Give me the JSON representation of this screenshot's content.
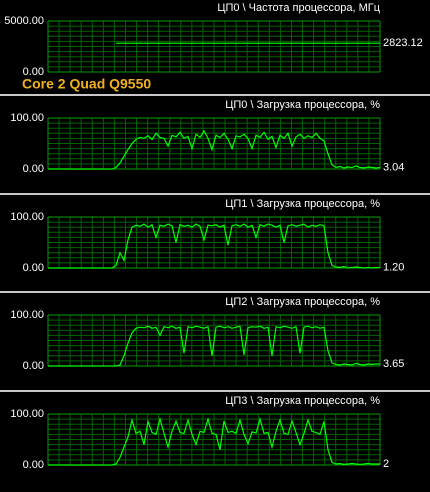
{
  "chart_data": [
    {
      "type": "line",
      "title": "ЦП0 \\ Частота процессора, МГц",
      "annotation": "Core 2 Quad Q9550",
      "color": "#00ff00",
      "grid": true,
      "ylim": [
        0,
        5000
      ],
      "yticks": [
        {
          "value": 0,
          "label": "0.00"
        },
        {
          "value": 5000,
          "label": "5000.00"
        }
      ],
      "current": {
        "value": 2823.12,
        "label": "2823.12"
      },
      "values": [
        null,
        null,
        null,
        null,
        null,
        null,
        null,
        null,
        null,
        null,
        null,
        null,
        null,
        null,
        null,
        null,
        null,
        2823.12,
        2823.12,
        2823.12,
        2823.12,
        2823.12,
        2823.12,
        2823.12,
        2823.12,
        2823.12,
        2823.12,
        2823.12,
        2823.12,
        2823.12,
        2823.12,
        2823.12,
        2823.12,
        2823.12,
        2823.12,
        2823.12,
        2823.12,
        2823.12,
        2823.12,
        2823.12,
        2823.12,
        2823.12,
        2823.12,
        2823.12,
        2823.12,
        2823.12,
        2823.12,
        2823.12,
        2823.12,
        2823.12,
        2823.12,
        2823.12,
        2823.12,
        2823.12,
        2823.12,
        2823.12,
        2823.12,
        2823.12,
        2823.12,
        2823.12,
        2823.12,
        2823.12,
        2823.12,
        2823.12,
        2823.12,
        2823.12,
        2823.12,
        2823.12,
        2823.12,
        2823.12,
        2823.12,
        2823.12,
        2823.12,
        2823.12,
        2823.12,
        2823.12,
        2823.12,
        2823.12,
        2823.12,
        2823.12,
        2823.12,
        2823.12,
        2823.12,
        2823.12
      ]
    },
    {
      "type": "line",
      "title": "ЦП0 \\ Загрузка процессора, %",
      "color": "#00ff00",
      "grid": true,
      "ylim": [
        0,
        100
      ],
      "yticks": [
        {
          "value": 0,
          "label": "0.00"
        },
        {
          "value": 100,
          "label": "100.00"
        }
      ],
      "current": {
        "value": 3.04,
        "label": "3.04"
      },
      "values": [
        0,
        0,
        0,
        0,
        0,
        0,
        0,
        0,
        0,
        0,
        0,
        0,
        0,
        0,
        0,
        0,
        0,
        3,
        12,
        25,
        38,
        50,
        58,
        62,
        60,
        65,
        58,
        70,
        62,
        60,
        45,
        66,
        63,
        72,
        60,
        64,
        40,
        68,
        62,
        75,
        60,
        38,
        66,
        62,
        70,
        58,
        40,
        65,
        63,
        68,
        60,
        40,
        66,
        62,
        72,
        58,
        64,
        42,
        66,
        60,
        70,
        45,
        63,
        68,
        60,
        65,
        62,
        70,
        60,
        55,
        30,
        8,
        3,
        5,
        2,
        4,
        3,
        6,
        3,
        2,
        4,
        3,
        2,
        3
      ]
    },
    {
      "type": "line",
      "title": "ЦП1 \\ Загрузка процессора, %",
      "color": "#00ff00",
      "grid": true,
      "ylim": [
        0,
        100
      ],
      "yticks": [
        {
          "value": 0,
          "label": "0.00"
        },
        {
          "value": 100,
          "label": "100.00"
        }
      ],
      "current": {
        "value": 1.2,
        "label": "1.20"
      },
      "values": [
        0,
        0,
        0,
        0,
        0,
        0,
        0,
        0,
        0,
        0,
        0,
        0,
        0,
        0,
        0,
        0,
        0,
        5,
        30,
        15,
        55,
        80,
        84,
        82,
        86,
        80,
        85,
        60,
        84,
        82,
        86,
        83,
        50,
        85,
        82,
        84,
        80,
        86,
        82,
        55,
        84,
        83,
        85,
        80,
        84,
        45,
        83,
        85,
        82,
        86,
        80,
        84,
        60,
        85,
        82,
        86,
        84,
        80,
        84,
        50,
        83,
        85,
        82,
        84,
        86,
        80,
        84,
        82,
        85,
        83,
        30,
        5,
        2,
        1,
        3,
        0,
        1,
        2,
        1,
        0,
        1,
        0,
        1,
        1
      ]
    },
    {
      "type": "line",
      "title": "ЦП2 \\ Загрузка процессора, %",
      "color": "#00ff00",
      "grid": true,
      "ylim": [
        0,
        100
      ],
      "yticks": [
        {
          "value": 0,
          "label": "0.00"
        },
        {
          "value": 100,
          "label": "100.00"
        }
      ],
      "current": {
        "value": 3.65,
        "label": "3.65"
      },
      "values": [
        0,
        0,
        0,
        0,
        0,
        0,
        0,
        0,
        0,
        0,
        0,
        0,
        0,
        0,
        0,
        0,
        0,
        0,
        2,
        20,
        45,
        65,
        74,
        76,
        75,
        78,
        74,
        76,
        60,
        77,
        75,
        78,
        74,
        76,
        25,
        77,
        75,
        78,
        76,
        74,
        77,
        20,
        76,
        78,
        75,
        77,
        74,
        76,
        78,
        22,
        75,
        77,
        76,
        78,
        74,
        76,
        20,
        77,
        75,
        78,
        76,
        74,
        77,
        25,
        76,
        78,
        75,
        77,
        74,
        76,
        30,
        6,
        3,
        2,
        4,
        3,
        2,
        5,
        3,
        2,
        4,
        3,
        4,
        4
      ]
    },
    {
      "type": "line",
      "title": "ЦП3 \\ Загрузка процессора, %",
      "color": "#00ff00",
      "grid": true,
      "ylim": [
        0,
        100
      ],
      "yticks": [
        {
          "value": 0,
          "label": "0.00"
        },
        {
          "value": 100,
          "label": "100.00"
        }
      ],
      "current": {
        "value": 2,
        "label": "2"
      },
      "values": [
        0,
        0,
        0,
        0,
        0,
        0,
        0,
        0,
        0,
        0,
        0,
        0,
        0,
        0,
        0,
        0,
        0,
        2,
        15,
        35,
        55,
        88,
        62,
        66,
        40,
        85,
        64,
        60,
        90,
        62,
        35,
        66,
        86,
        64,
        62,
        88,
        60,
        40,
        66,
        64,
        90,
        62,
        60,
        30,
        86,
        64,
        66,
        62,
        88,
        60,
        42,
        65,
        63,
        90,
        62,
        64,
        35,
        66,
        88,
        62,
        60,
        86,
        64,
        40,
        62,
        88,
        66,
        64,
        60,
        85,
        30,
        5,
        2,
        3,
        1,
        2,
        3,
        2,
        1,
        2,
        3,
        2,
        2,
        2
      ]
    }
  ]
}
